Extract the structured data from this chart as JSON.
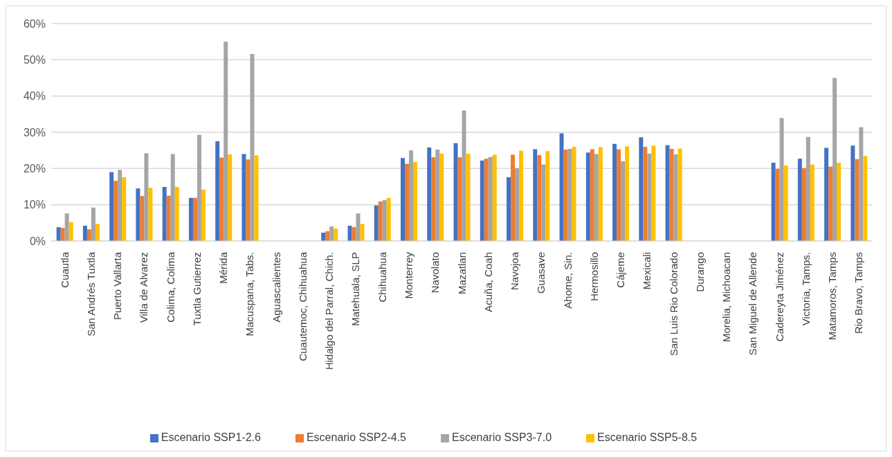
{
  "chart_data": {
    "type": "bar",
    "categories": [
      "Cuautla",
      "San Andrés Tuxtla",
      "Puerto Vallarta",
      "Villa de Alvarez",
      "Colima, Colima",
      "Tuxtla Gutierrez",
      "Mérida",
      "Macuspana, Tabs.",
      "Aguascalientes",
      "Cuautemoc, Chihuahua",
      "Hidalgo del Parral, Chich.",
      "Matehuala, SLP",
      "Chihuahua",
      "Monterrey",
      "Navolato",
      "Mazatlan",
      "Acuña, Coah",
      "Navojoa",
      "Guasave",
      "Ahome, Sin.",
      "Hermosillo",
      "Cájeme",
      "Mexicali",
      "San Luis Rio Colorado",
      "Durango",
      "Morelia, Michoacan",
      "San Miguel de Allende",
      "Cadereyta Jiménez",
      "Victoria, Tamps.",
      "Matamoros, Tamps",
      "Rio Bravo, Tamps"
    ],
    "series": [
      {
        "name": "Escenario SSP1-2.6",
        "color": "#4472c4",
        "values": [
          3.8,
          4.2,
          19,
          14.5,
          14.9,
          11.9,
          27.5,
          24,
          null,
          null,
          2.3,
          4.2,
          9.8,
          22.9,
          25.8,
          27,
          22.2,
          17.6,
          25.3,
          29.7,
          24.4,
          26.8,
          28.6,
          26.4,
          null,
          null,
          null,
          21.6,
          22.7,
          25.7,
          26.3
        ]
      },
      {
        "name": "Escenario SSP2-4.5",
        "color": "#ed7d31",
        "values": [
          3.6,
          3.2,
          16.6,
          12.4,
          12.5,
          11.9,
          23,
          22.5,
          null,
          null,
          2.7,
          3.8,
          10.9,
          21.3,
          23.1,
          23.1,
          22.7,
          23.8,
          23.7,
          25.2,
          25.3,
          25.3,
          26,
          25.4,
          null,
          null,
          null,
          19.9,
          20.1,
          20.5,
          22.6
        ]
      },
      {
        "name": "Escenario SSP3-7.0",
        "color": "#a5a5a5",
        "values": [
          7.6,
          9.2,
          19.6,
          24.2,
          24,
          29.3,
          55,
          51.6,
          null,
          null,
          4,
          7.6,
          11.3,
          25,
          25.2,
          36,
          23.2,
          20.1,
          21.1,
          25.4,
          24,
          22,
          24.1,
          23.9,
          null,
          null,
          null,
          33.9,
          28.7,
          45,
          31.4
        ]
      },
      {
        "name": "Escenario SSP5-8.5",
        "color": "#ffc000",
        "values": [
          5.2,
          4.7,
          17.6,
          14.7,
          14.9,
          14.2,
          23.9,
          23.6,
          null,
          null,
          3.4,
          4.7,
          11.9,
          21.8,
          24.1,
          24.1,
          23.8,
          24.9,
          24.8,
          26,
          25.9,
          26.1,
          26.3,
          25.5,
          null,
          null,
          null,
          20.8,
          21.1,
          21.6,
          23.4
        ]
      }
    ],
    "ylim": [
      0,
      60
    ],
    "yticks": [
      {
        "value": 0,
        "label": "0%"
      },
      {
        "value": 10,
        "label": "10%"
      },
      {
        "value": 20,
        "label": "20%"
      },
      {
        "value": 30,
        "label": "30%"
      },
      {
        "value": 40,
        "label": "40%"
      },
      {
        "value": 50,
        "label": "50%"
      },
      {
        "value": 60,
        "label": "60%"
      }
    ],
    "grid": "y",
    "legend": "bottom"
  }
}
